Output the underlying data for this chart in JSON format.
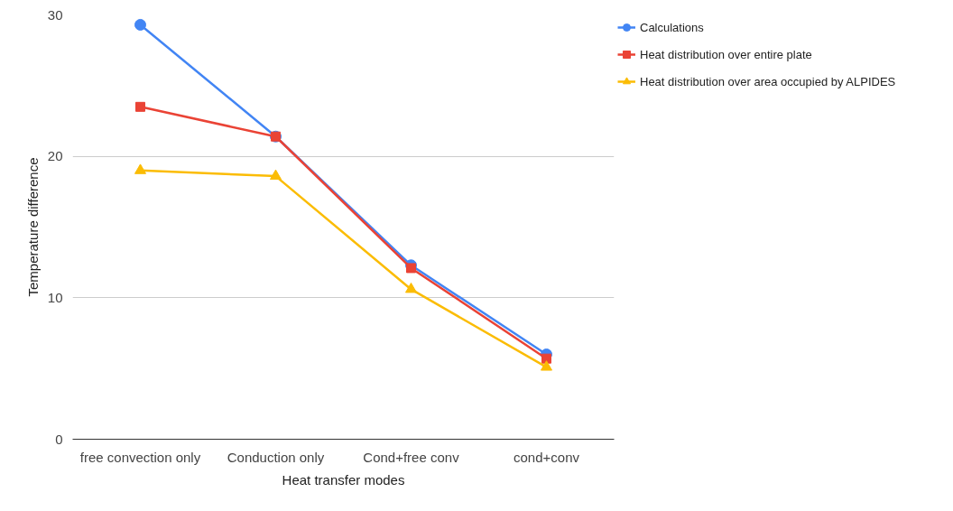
{
  "chart_data": {
    "type": "line",
    "xlabel": "Heat transfer modes",
    "ylabel": "Temperature difference",
    "categories": [
      "free convection only",
      "Conduction only",
      "Cond+free conv",
      "cond+conv"
    ],
    "ylim": [
      0,
      30
    ],
    "yticks": [
      0,
      10,
      20,
      30
    ],
    "grid": "y",
    "legend": "top right",
    "series": [
      {
        "name": "Calculations",
        "color": "#4285f4",
        "marker": "circle",
        "values": [
          29.3,
          21.4,
          12.3,
          6.0
        ]
      },
      {
        "name": "Heat distribution over entire plate",
        "color": "#ea4335",
        "marker": "square",
        "values": [
          23.5,
          21.4,
          12.1,
          5.7
        ]
      },
      {
        "name": "Heat distribution over area occupied by ALPIDES",
        "color": "#fbbc04",
        "marker": "triangle",
        "values": [
          19.0,
          18.6,
          10.6,
          5.1
        ]
      }
    ]
  }
}
